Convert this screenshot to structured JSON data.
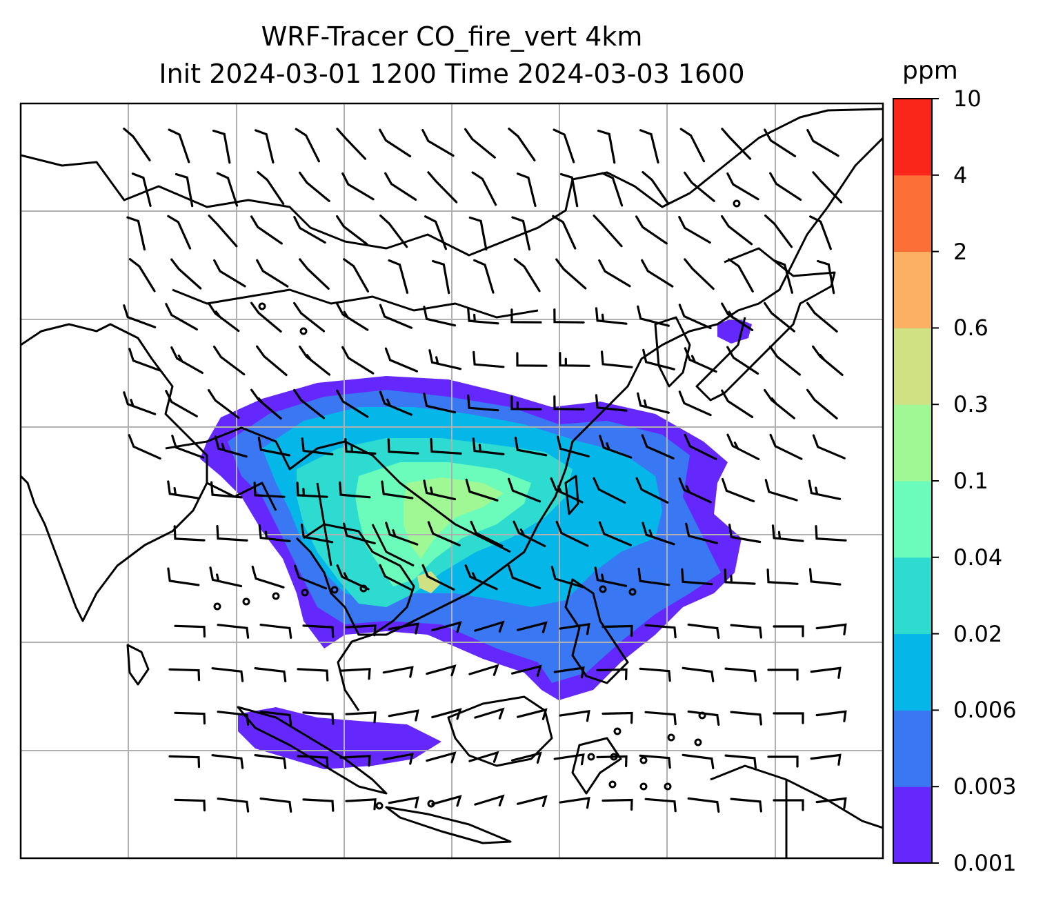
{
  "title": {
    "line1": "WRF-Tracer CO_fire_vert 4km",
    "line2": "Init 2024-03-01 1200 Time 2024-03-03 1600"
  },
  "colorbar": {
    "unit": "ppm",
    "levels": [
      "0.001",
      "0.003",
      "0.006",
      "0.02",
      "0.04",
      "0.1",
      "0.3",
      "0.6",
      "2",
      "4",
      "10"
    ],
    "colors": [
      "#6528fc",
      "#3a77f2",
      "#05b6e8",
      "#2edbd0",
      "#6bfcbc",
      "#9ff894",
      "#d0e184",
      "#fcb064",
      "#fc7038",
      "#fa2619"
    ]
  },
  "map": {
    "gridlines": true,
    "gridline_color": "#b0b0b0",
    "coastline_color": "#000000",
    "barb_color": "#000000"
  }
}
